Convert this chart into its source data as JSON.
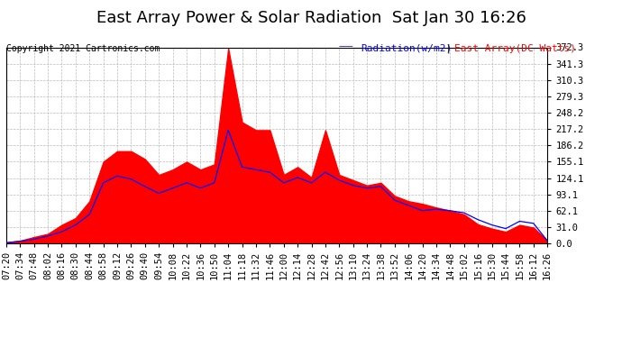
{
  "title": "East Array Power & Solar Radiation  Sat Jan 30 16:26",
  "copyright": "Copyright 2021 Cartronics.com",
  "legend_radiation": "Radiation(w/m2)",
  "legend_east_array": "East Array(DC Watts)",
  "legend_radiation_color": "blue",
  "legend_east_array_color": "red",
  "yticks": [
    0.0,
    31.0,
    62.1,
    93.1,
    124.1,
    155.1,
    186.2,
    217.2,
    248.2,
    279.3,
    310.3,
    341.3,
    372.3
  ],
  "ymax": 372.3,
  "ymin": 0.0,
  "background_color": "#ffffff",
  "plot_bg_color": "#ffffff",
  "grid_color": "#cccccc",
  "fill_color": "red",
  "line_color": "blue",
  "title_fontsize": 13,
  "tick_fontsize": 7.5,
  "copyright_fontsize": 7,
  "xtick_labels": [
    "07:20",
    "07:34",
    "07:48",
    "08:02",
    "08:16",
    "08:30",
    "08:44",
    "08:58",
    "09:12",
    "09:26",
    "09:40",
    "09:54",
    "10:08",
    "10:22",
    "10:36",
    "10:50",
    "11:04",
    "11:18",
    "11:32",
    "11:46",
    "12:00",
    "12:14",
    "12:28",
    "12:42",
    "12:56",
    "13:10",
    "13:24",
    "13:38",
    "13:52",
    "14:06",
    "14:20",
    "14:34",
    "14:48",
    "15:02",
    "15:16",
    "15:30",
    "15:44",
    "15:58",
    "16:12",
    "16:26"
  ],
  "east_array_values": [
    2,
    5,
    12,
    18,
    35,
    48,
    80,
    155,
    175,
    175,
    160,
    130,
    140,
    155,
    140,
    150,
    370,
    230,
    215,
    215,
    130,
    145,
    125,
    215,
    130,
    120,
    110,
    115,
    90,
    80,
    75,
    68,
    62,
    55,
    36,
    28,
    22,
    35,
    30,
    5
  ],
  "radiation_values": [
    1,
    4,
    8,
    14,
    22,
    35,
    55,
    115,
    128,
    122,
    108,
    95,
    105,
    115,
    105,
    115,
    215,
    145,
    140,
    135,
    115,
    125,
    115,
    135,
    120,
    110,
    105,
    108,
    82,
    72,
    62,
    65,
    62,
    58,
    45,
    35,
    28,
    42,
    38,
    5
  ]
}
